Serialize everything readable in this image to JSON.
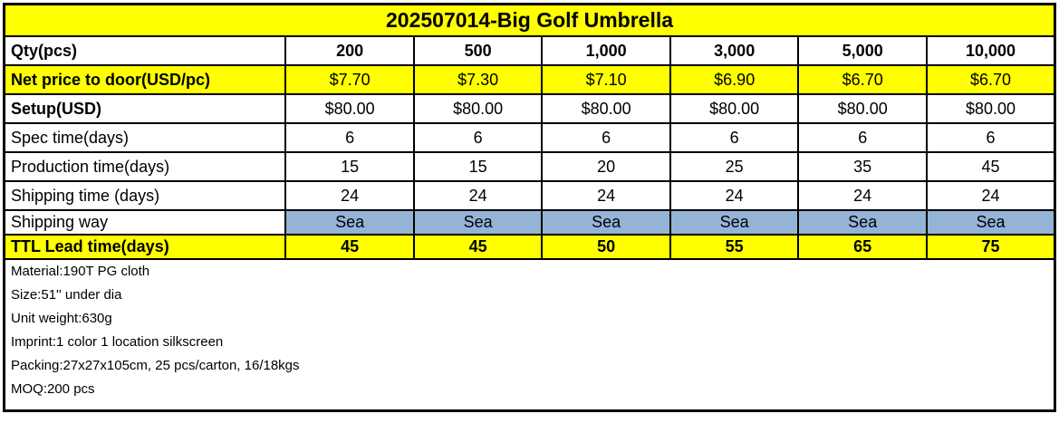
{
  "title": "202507014-Big Golf Umbrella",
  "table": {
    "rows": [
      {
        "label": "Qty(pcs)",
        "values": [
          "200",
          "500",
          "1,000",
          "3,000",
          "5,000",
          "10,000"
        ]
      },
      {
        "label": "Net price to door(USD/pc)",
        "values": [
          "$7.70",
          "$7.30",
          "$7.10",
          "$6.90",
          "$6.70",
          "$6.70"
        ]
      },
      {
        "label": "Setup(USD)",
        "values": [
          "$80.00",
          "$80.00",
          "$80.00",
          "$80.00",
          "$80.00",
          "$80.00"
        ]
      },
      {
        "label": "Spec time(days)",
        "values": [
          "6",
          "6",
          "6",
          "6",
          "6",
          "6"
        ]
      },
      {
        "label": "Production time(days)",
        "values": [
          "15",
          "15",
          "20",
          "25",
          "35",
          "45"
        ]
      },
      {
        "label": "Shipping time (days)",
        "values": [
          "24",
          "24",
          "24",
          "24",
          "24",
          "24"
        ]
      },
      {
        "label": "Shipping way",
        "values": [
          "Sea",
          "Sea",
          "Sea",
          "Sea",
          "Sea",
          "Sea"
        ]
      },
      {
        "label": "TTL Lead time(days)",
        "values": [
          "45",
          "45",
          "50",
          "55",
          "65",
          "75"
        ]
      }
    ]
  },
  "notes": [
    "Material:190T PG cloth",
    "Size:51'' under dia",
    "Unit weight:630g",
    "Imprint:1 color 1 location silkscreen",
    "Packing:27x27x105cm, 25 pcs/carton, 16/18kgs",
    "MOQ:200 pcs"
  ],
  "colors": {
    "highlight": "#FFFF00",
    "sea_fill": "#95B3D7",
    "border": "#000000",
    "text": "#000000"
  }
}
